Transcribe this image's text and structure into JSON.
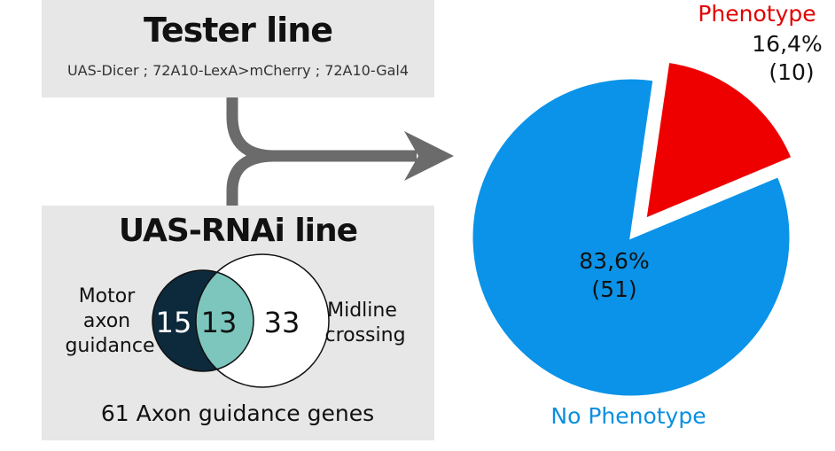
{
  "tester": {
    "title": "Tester line",
    "genotype": "UAS-Dicer ; 72A10-LexA>mCherry ; 72A10-Gal4"
  },
  "rnai": {
    "title": "UAS-RNAi line",
    "venn": {
      "left_label_lines": [
        "Motor",
        "axon",
        "guidance"
      ],
      "right_label_lines": [
        "Midline",
        "crossing"
      ],
      "left_only": "15",
      "overlap": "13",
      "right_only": "33"
    },
    "total_label": "61 Axon guidance genes"
  },
  "chart_data": {
    "type": "pie",
    "slices": [
      {
        "name": "Phenotype",
        "percent": 16.4,
        "count": 10,
        "percent_label": "16,4%",
        "count_label": "(10)",
        "color": "#ee0000",
        "exploded": true
      },
      {
        "name": "No Phenotype",
        "percent": 83.6,
        "count": 51,
        "percent_label": "83,6%",
        "count_label": "(51)",
        "color": "#0a93e8",
        "exploded": false
      }
    ]
  },
  "colors": {
    "box_bg": "#e7e7e7",
    "arrow": "#6b6b6b",
    "venn_left": "#0d2a3c",
    "venn_overlap": "#7cc6be",
    "phenotype_label": "#e00000",
    "no_phenotype_label": "#0a8fe0"
  }
}
